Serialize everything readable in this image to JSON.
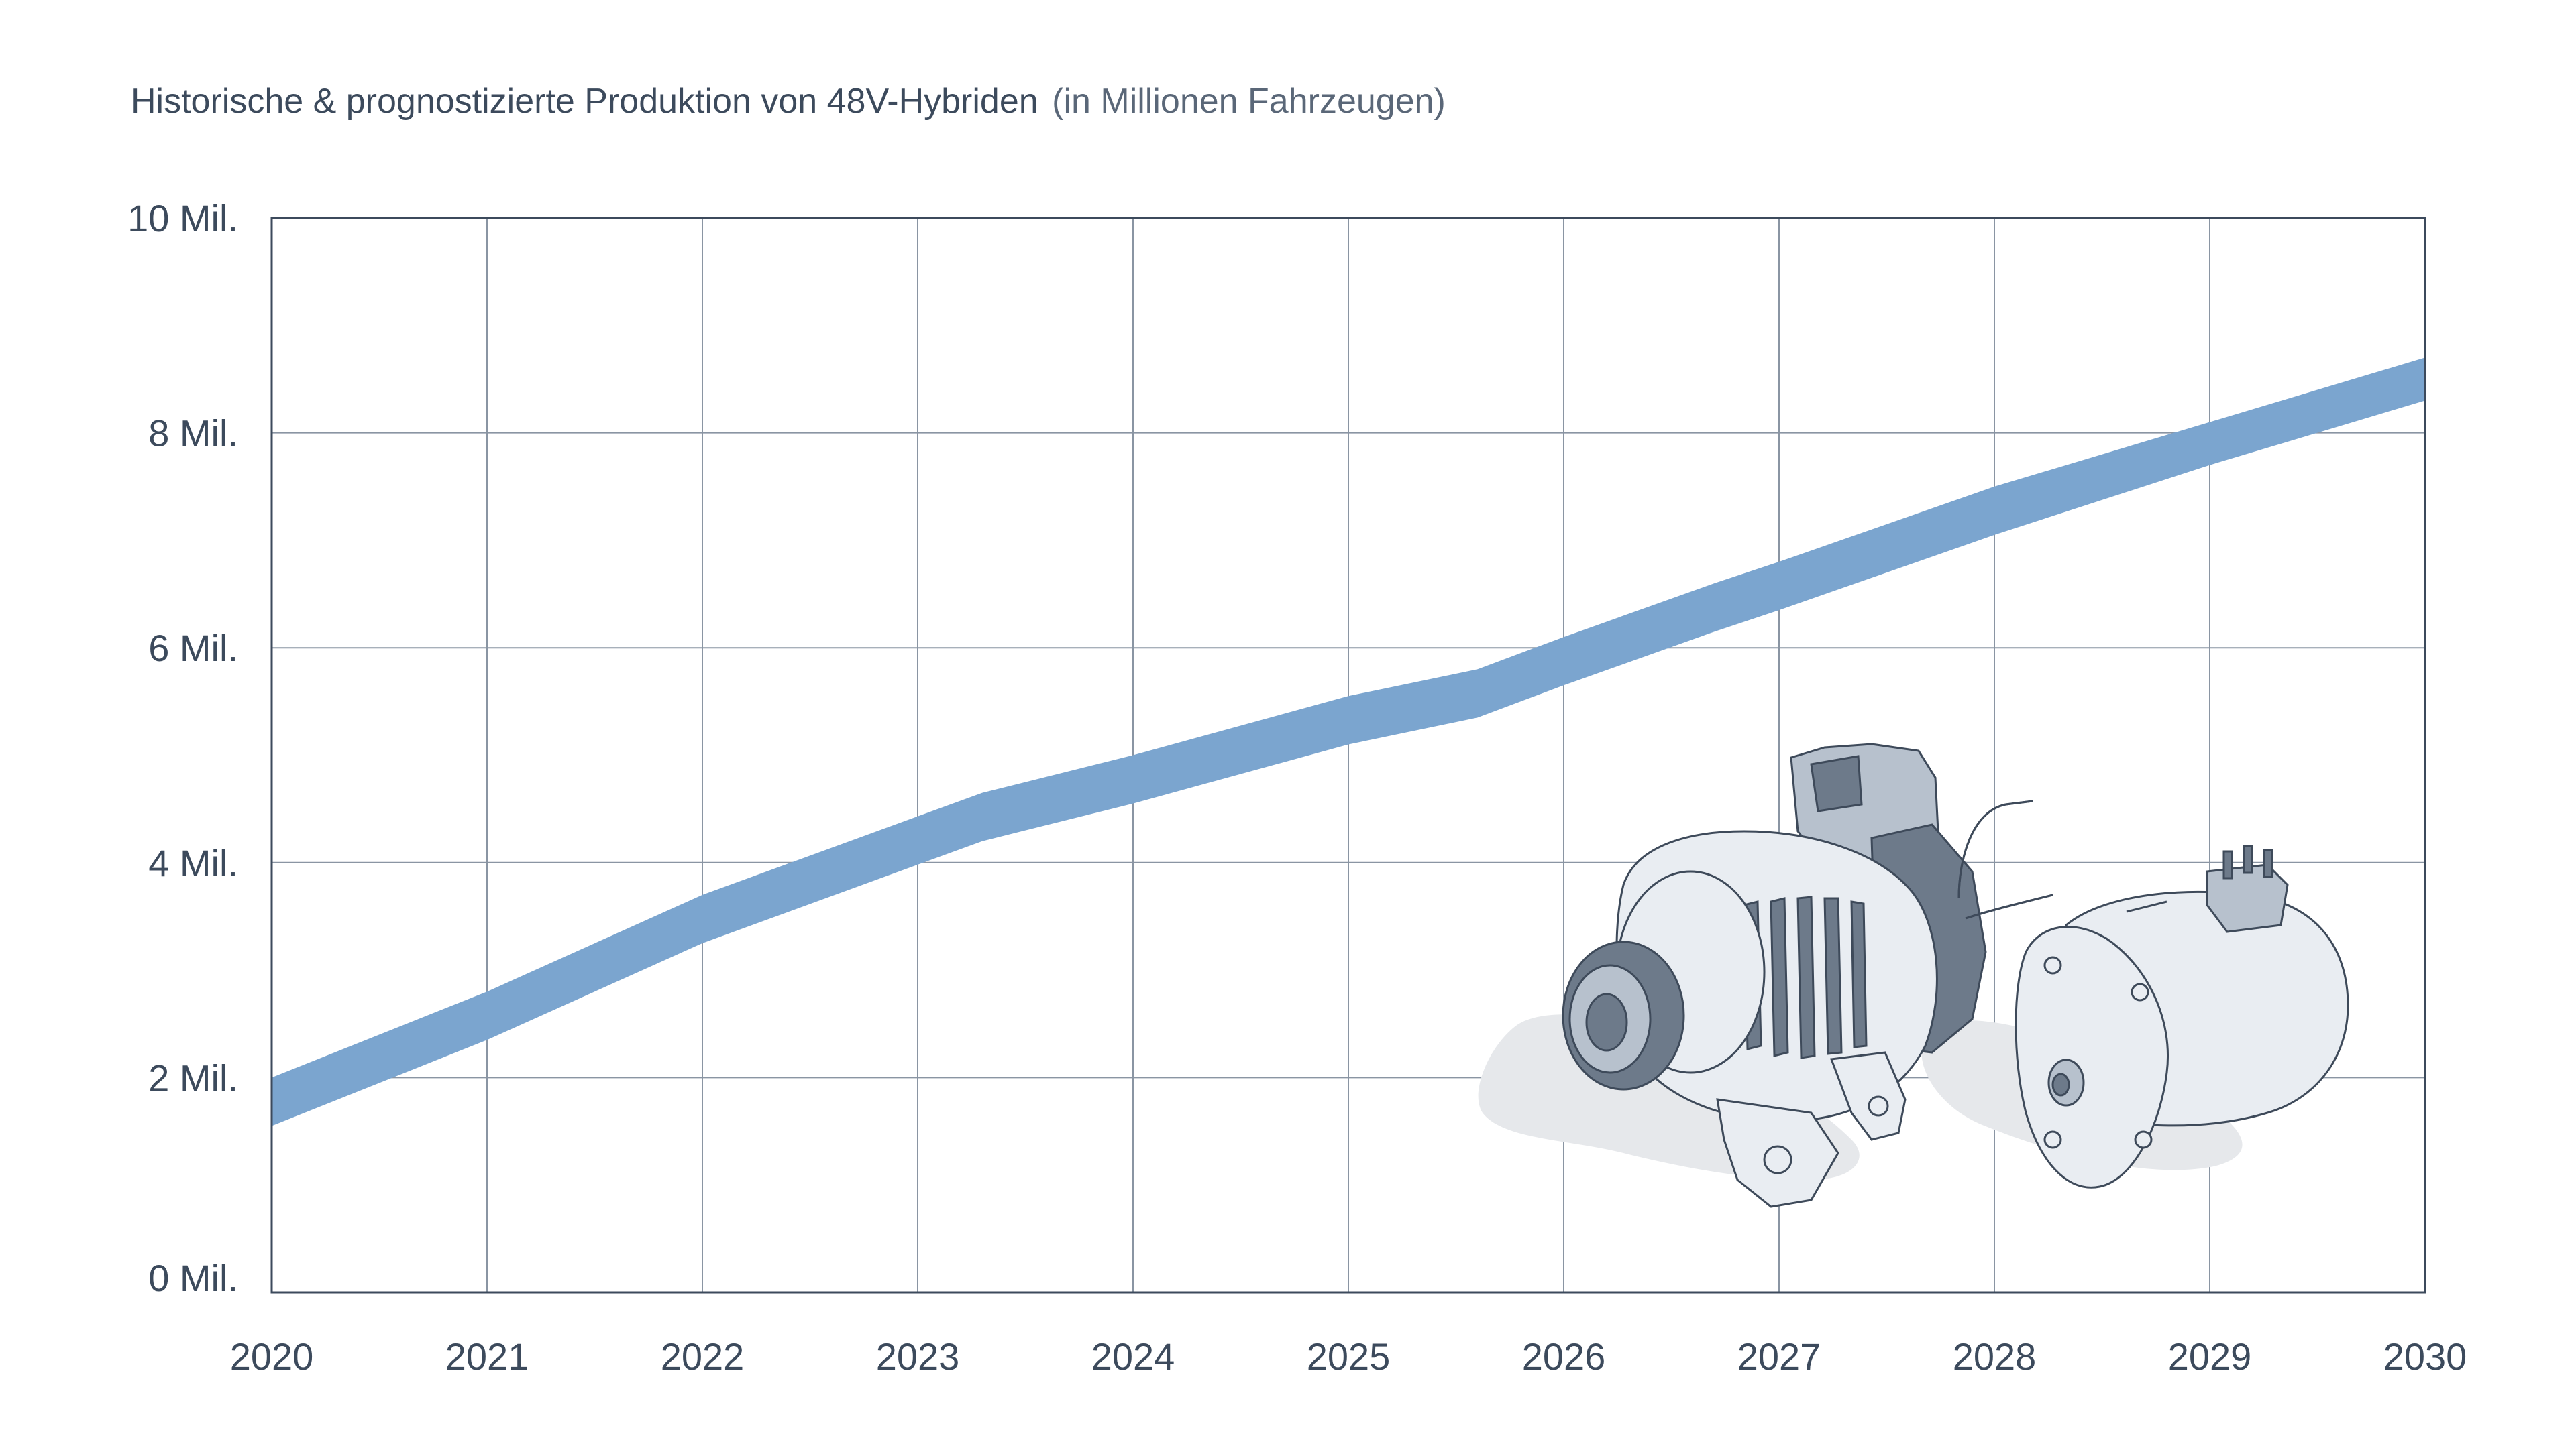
{
  "chart_data": {
    "type": "area",
    "title": "Historische & prognostizierte Produktion von 48V-Hybriden",
    "subtitle": "(in Millionen Fahrzeugen)",
    "xlabel": "",
    "ylabel": "",
    "x_ticks": [
      "2020",
      "2021",
      "2022",
      "2023",
      "2024",
      "2025",
      "2026",
      "2027",
      "2028",
      "2029",
      "2030"
    ],
    "y_ticks": [
      {
        "value": 0,
        "label": "0 Mil."
      },
      {
        "value": 2,
        "label": "2 Mil."
      },
      {
        "value": 4,
        "label": "4 Mil."
      },
      {
        "value": 6,
        "label": "6 Mil."
      },
      {
        "value": 8,
        "label": "8 Mil."
      },
      {
        "value": 10,
        "label": "10 Mil."
      }
    ],
    "xlim": [
      2020,
      2030
    ],
    "ylim": [
      0,
      10
    ],
    "grid": true,
    "band": {
      "x": [
        2020.0,
        2021.0,
        2022.0,
        2023.3,
        2024.0,
        2025.0,
        2025.6,
        2026.0,
        2026.7,
        2027.0,
        2028.0,
        2029.0,
        2030.0
      ],
      "upper": [
        2.0,
        2.8,
        3.7,
        4.65,
        5.0,
        5.55,
        5.8,
        6.1,
        6.6,
        6.8,
        7.5,
        8.1,
        8.7
      ],
      "lower": [
        1.55,
        2.35,
        3.25,
        4.2,
        4.55,
        5.1,
        5.35,
        5.65,
        6.15,
        6.35,
        7.05,
        7.7,
        8.3
      ]
    },
    "colors": {
      "band": "#7ba5cf",
      "grid": "#8a95a3",
      "frame": "#3c4a5c",
      "text": "#3c4a5c"
    },
    "illustrations": [
      "alternator-illustration",
      "electric-motor-illustration"
    ]
  }
}
